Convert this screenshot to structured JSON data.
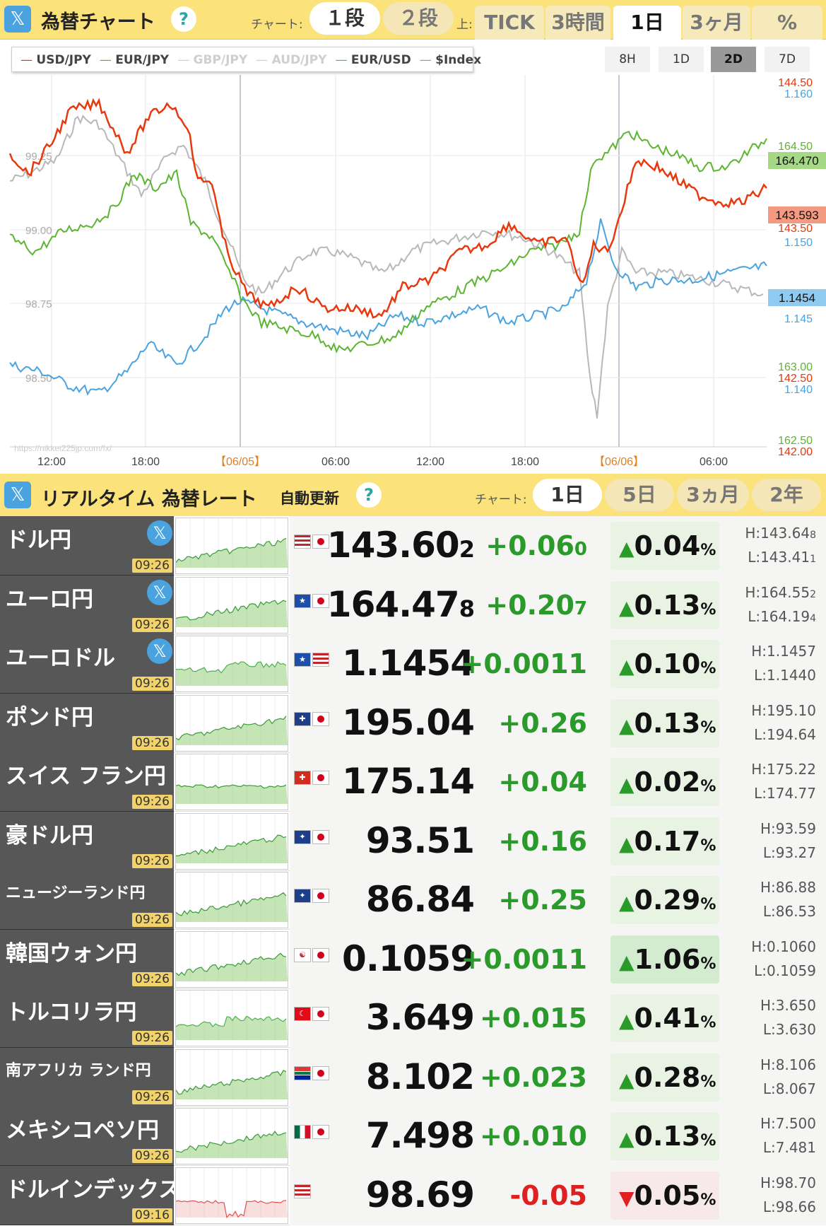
{
  "header": {
    "title": "為替チャート",
    "chart_label": "チャート:",
    "step1": "１段",
    "step2": "２段",
    "upper_label": "上:",
    "tabs": [
      "TICK",
      "3時間",
      "1日",
      "3ヶ月",
      "%"
    ],
    "active_tab": "1日"
  },
  "chart": {
    "legend": [
      {
        "label": "USD/JPY",
        "color": "#e8380d",
        "enabled": true
      },
      {
        "label": "EUR/JPY",
        "color": "#5cb531",
        "enabled": true
      },
      {
        "label": "GBP/JPY",
        "color": "#bbbbbb",
        "enabled": false
      },
      {
        "label": "AUD/JPY",
        "color": "#bbbbbb",
        "enabled": false
      },
      {
        "label": "EUR/USD",
        "color": "#4aa3df",
        "enabled": true
      },
      {
        "label": "$Index",
        "color": "#999999",
        "enabled": true
      }
    ],
    "ranges": [
      "8H",
      "1D",
      "2D",
      "7D"
    ],
    "active_range": "2D",
    "x_ticks": [
      "12:00",
      "18:00",
      "【06/05】",
      "06:00",
      "12:00",
      "18:00",
      "【06/06】",
      "06:00"
    ],
    "left_ticks": [
      "99.25",
      "99.00",
      "98.75",
      "98.50"
    ],
    "right_ticks": [
      {
        "text": "144.50",
        "color": "#e8380d"
      },
      {
        "text": "1.160",
        "color": "#4aa3df"
      },
      {
        "text": "164.50",
        "color": "#5cb531"
      },
      {
        "text": "143.50",
        "color": "#e8380d"
      },
      {
        "text": "1.150",
        "color": "#4aa3df"
      },
      {
        "text": "1.145",
        "color": "#4aa3df"
      },
      {
        "text": "163.00",
        "color": "#5cb531"
      },
      {
        "text": "142.50",
        "color": "#e8380d"
      },
      {
        "text": "1.140",
        "color": "#4aa3df"
      },
      {
        "text": "162.50",
        "color": "#5cb531"
      },
      {
        "text": "142.00",
        "color": "#e8380d"
      }
    ],
    "last_labels": [
      {
        "text": "164.470",
        "bg": "#a6d985"
      },
      {
        "text": "143.593",
        "bg": "#f59a82"
      },
      {
        "text": "1.1454",
        "bg": "#8fcaf0"
      }
    ],
    "watermark": "https://nikkei225jp.com/fx/"
  },
  "realtime": {
    "title": "リアルタイム 為替レート",
    "auto_update": "自動更新",
    "chart_label": "チャート:",
    "periods": [
      "1日",
      "5日",
      "3ヵ月",
      "2年"
    ],
    "active_period": "1日"
  },
  "rows": [
    {
      "name": "ドル円",
      "small": false,
      "tweet": true,
      "time": "09:26",
      "flags": [
        "US",
        "JP"
      ],
      "price": "143.60",
      "price_sub": "2",
      "change": "+0.06",
      "change_sub": "0",
      "pct": "0.04",
      "dir": "up",
      "high": "H:143.64",
      "high_sub": "8",
      "low": "L:143.41",
      "low_sub": "1",
      "spark": "green"
    },
    {
      "name": "ユーロ円",
      "small": false,
      "tweet": true,
      "time": "09:26",
      "flags": [
        "EU",
        "JP"
      ],
      "price": "164.47",
      "price_sub": "8",
      "change": "+0.20",
      "change_sub": "7",
      "pct": "0.13",
      "dir": "up",
      "high": "H:164.55",
      "high_sub": "2",
      "low": "L:164.19",
      "low_sub": "4",
      "spark": "green"
    },
    {
      "name": "ユーロドル",
      "small": false,
      "tweet": true,
      "time": "09:26",
      "flags": [
        "EU",
        "US"
      ],
      "price": "1.1454",
      "price_sub": "",
      "change": "+0.0011",
      "change_sub": "",
      "pct": "0.10",
      "dir": "up",
      "high": "H:1.1457",
      "high_sub": "",
      "low": "L:1.1440",
      "low_sub": "",
      "spark": "mixed"
    },
    {
      "name": "ポンド円",
      "small": false,
      "tweet": false,
      "time": "09:26",
      "flags": [
        "GB",
        "JP"
      ],
      "price": "195.04",
      "price_sub": "",
      "change": "+0.26",
      "change_sub": "",
      "pct": "0.13",
      "dir": "up",
      "high": "H:195.10",
      "high_sub": "",
      "low": "L:194.64",
      "low_sub": "",
      "spark": "green"
    },
    {
      "name": "スイス フラン円",
      "small": false,
      "tweet": false,
      "time": "09:26",
      "flags": [
        "CH",
        "JP"
      ],
      "price": "175.14",
      "price_sub": "",
      "change": "+0.04",
      "change_sub": "",
      "pct": "0.02",
      "dir": "up",
      "high": "H:175.22",
      "high_sub": "",
      "low": "L:174.77",
      "low_sub": "",
      "spark": "flat"
    },
    {
      "name": "豪ドル円",
      "small": false,
      "tweet": false,
      "time": "09:26",
      "flags": [
        "AU",
        "JP"
      ],
      "price": "93.51",
      "price_sub": "",
      "change": "+0.16",
      "change_sub": "",
      "pct": "0.17",
      "dir": "up",
      "high": "H:93.59",
      "high_sub": "",
      "low": "L:93.27",
      "low_sub": "",
      "spark": "green"
    },
    {
      "name": "ニュージーランド円",
      "small": true,
      "tweet": false,
      "time": "09:26",
      "flags": [
        "NZ",
        "JP"
      ],
      "price": "86.84",
      "price_sub": "",
      "change": "+0.25",
      "change_sub": "",
      "pct": "0.29",
      "dir": "up",
      "high": "H:86.88",
      "high_sub": "",
      "low": "L:86.53",
      "low_sub": "",
      "spark": "green"
    },
    {
      "name": "韓国ウォン円",
      "small": false,
      "tweet": false,
      "time": "09:26",
      "flags": [
        "KR",
        "JP"
      ],
      "price": "0.1059",
      "price_sub": "",
      "change": "+0.0011",
      "change_sub": "",
      "pct": "1.06",
      "dir": "up",
      "high": "H:0.1060",
      "high_sub": "",
      "low": "L:0.1059",
      "low_sub": "",
      "spark": "green",
      "strong": true
    },
    {
      "name": "トルコリラ円",
      "small": false,
      "tweet": false,
      "time": "09:26",
      "flags": [
        "TR",
        "JP"
      ],
      "price": "3.649",
      "price_sub": "",
      "change": "+0.015",
      "change_sub": "",
      "pct": "0.41",
      "dir": "up",
      "high": "H:3.650",
      "high_sub": "",
      "low": "L:3.630",
      "low_sub": "",
      "spark": "mixed"
    },
    {
      "name": "南アフリカ ランド円",
      "small": true,
      "tweet": false,
      "time": "09:26",
      "flags": [
        "ZA",
        "JP"
      ],
      "price": "8.102",
      "price_sub": "",
      "change": "+0.023",
      "change_sub": "",
      "pct": "0.28",
      "dir": "up",
      "high": "H:8.106",
      "high_sub": "",
      "low": "L:8.067",
      "low_sub": "",
      "spark": "green"
    },
    {
      "name": "メキシコペソ円",
      "small": false,
      "tweet": false,
      "time": "09:26",
      "flags": [
        "MX",
        "JP"
      ],
      "price": "7.498",
      "price_sub": "",
      "change": "+0.010",
      "change_sub": "",
      "pct": "0.13",
      "dir": "up",
      "high": "H:7.500",
      "high_sub": "",
      "low": "L:7.481",
      "low_sub": "",
      "spark": "green"
    },
    {
      "name": "ドルインデックス",
      "small": false,
      "tweet": false,
      "time": "09:16",
      "flags": [
        "US"
      ],
      "price": "98.69",
      "price_sub": "",
      "change": "-0.05",
      "change_sub": "",
      "pct": "0.05",
      "dir": "down",
      "high": "H:98.70",
      "high_sub": "",
      "low": "L:98.66",
      "low_sub": "",
      "spark": "red"
    }
  ]
}
